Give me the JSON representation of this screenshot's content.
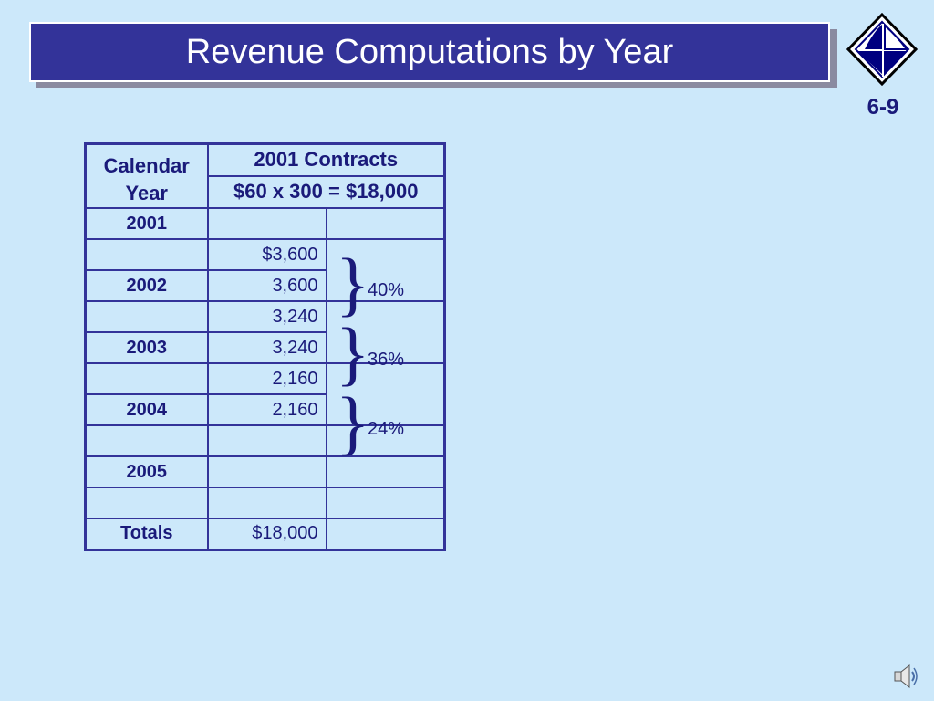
{
  "title": "Revenue Computations by Year",
  "slide_number": "6-9",
  "table": {
    "header": {
      "calendar_year": "Calendar Year",
      "contracts": "2001 Contracts",
      "computation": "$60 x 300 = $18,000"
    },
    "rows": [
      {
        "year": "2001",
        "amount": ""
      },
      {
        "year": "",
        "amount": "$3,600"
      },
      {
        "year": "2002",
        "amount": "3,600"
      },
      {
        "year": "",
        "amount": "3,240"
      },
      {
        "year": "2003",
        "amount": "3,240"
      },
      {
        "year": "",
        "amount": "2,160"
      },
      {
        "year": "2004",
        "amount": "2,160"
      },
      {
        "year": "",
        "amount": ""
      },
      {
        "year": "2005",
        "amount": ""
      },
      {
        "year": "",
        "amount": ""
      },
      {
        "year": "Totals",
        "amount": "$18,000"
      }
    ],
    "percentages": [
      "40%",
      "36%",
      "24%"
    ]
  },
  "colors": {
    "background": "#cce8fa",
    "title_bar": "#333399",
    "text": "#1a1a7a"
  },
  "icons": [
    "logo-icon",
    "speaker-icon"
  ]
}
